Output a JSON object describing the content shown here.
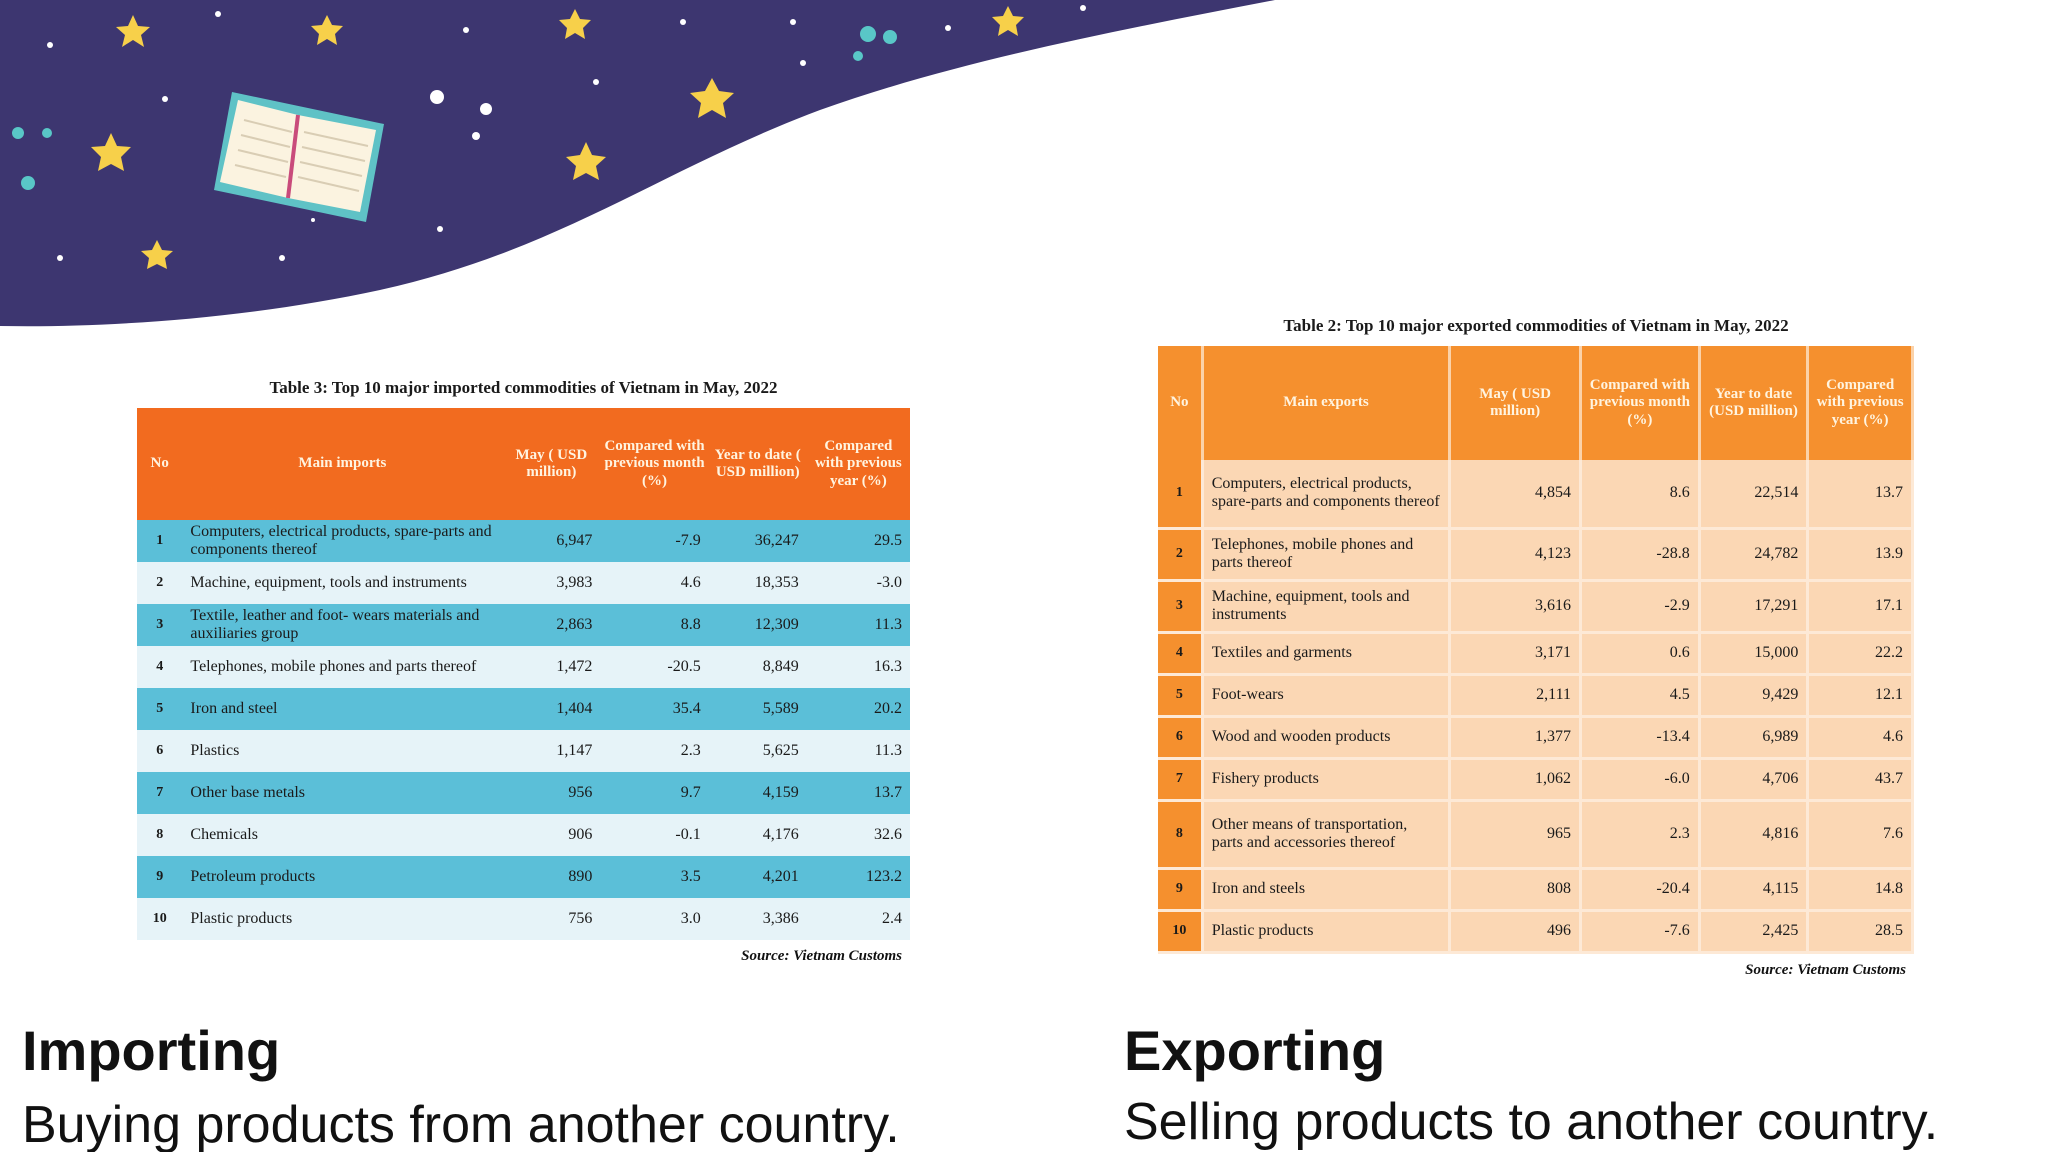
{
  "imports_table": {
    "title": "Table 3: Top 10 major imported commodities of Vietnam in May, 2022",
    "headers": [
      "No",
      "Main imports",
      "May ( USD million)",
      "Compared with previous month (%)",
      "Year to date ( USD million)",
      "Compared with previous year (%)"
    ],
    "rows": [
      {
        "no": "1",
        "name": "Computers, electrical products, spare-parts and components thereof",
        "may": "6,947",
        "mom": "-7.9",
        "ytd": "36,247",
        "yoy": "29.5"
      },
      {
        "no": "2",
        "name": "Machine, equipment, tools and instruments",
        "may": "3,983",
        "mom": "4.6",
        "ytd": "18,353",
        "yoy": "-3.0"
      },
      {
        "no": "3",
        "name": "Textile, leather and foot- wears materials and auxiliaries group",
        "may": "2,863",
        "mom": "8.8",
        "ytd": "12,309",
        "yoy": "11.3"
      },
      {
        "no": "4",
        "name": "Telephones, mobile phones and parts thereof",
        "may": "1,472",
        "mom": "-20.5",
        "ytd": "8,849",
        "yoy": "16.3"
      },
      {
        "no": "5",
        "name": "Iron and steel",
        "may": "1,404",
        "mom": "35.4",
        "ytd": "5,589",
        "yoy": "20.2"
      },
      {
        "no": "6",
        "name": "Plastics",
        "may": "1,147",
        "mom": "2.3",
        "ytd": "5,625",
        "yoy": "11.3"
      },
      {
        "no": "7",
        "name": "Other base metals",
        "may": "956",
        "mom": "9.7",
        "ytd": "4,159",
        "yoy": "13.7"
      },
      {
        "no": "8",
        "name": "Chemicals",
        "may": "906",
        "mom": "-0.1",
        "ytd": "4,176",
        "yoy": "32.6"
      },
      {
        "no": "9",
        "name": "Petroleum products",
        "may": "890",
        "mom": "3.5",
        "ytd": "4,201",
        "yoy": "123.2"
      },
      {
        "no": "10",
        "name": "Plastic products",
        "may": "756",
        "mom": "3.0",
        "ytd": "3,386",
        "yoy": "2.4"
      }
    ],
    "source": "Source: Vietnam Customs"
  },
  "exports_table": {
    "title": "Table 2: Top 10 major exported commodities of Vietnam in May, 2022",
    "headers": [
      "No",
      "Main exports",
      "May ( USD million)",
      "Compared with previous month (%)",
      "Year to date (USD million)",
      "Compared with previous year (%)"
    ],
    "rows": [
      {
        "no": "1",
        "name": "Computers, electrical products, spare-parts and components thereof",
        "may": "4,854",
        "mom": "8.6",
        "ytd": "22,514",
        "yoy": "13.7"
      },
      {
        "no": "2",
        "name": "Telephones, mobile phones and parts thereof",
        "may": "4,123",
        "mom": "-28.8",
        "ytd": "24,782",
        "yoy": "13.9"
      },
      {
        "no": "3",
        "name": "Machine, equipment, tools and instruments",
        "may": "3,616",
        "mom": "-2.9",
        "ytd": "17,291",
        "yoy": "17.1"
      },
      {
        "no": "4",
        "name": "Textiles and garments",
        "may": "3,171",
        "mom": "0.6",
        "ytd": "15,000",
        "yoy": "22.2"
      },
      {
        "no": "5",
        "name": "Foot-wears",
        "may": "2,111",
        "mom": "4.5",
        "ytd": "9,429",
        "yoy": "12.1"
      },
      {
        "no": "6",
        "name": "Wood and wooden products",
        "may": "1,377",
        "mom": "-13.4",
        "ytd": "6,989",
        "yoy": "4.6"
      },
      {
        "no": "7",
        "name": "Fishery products",
        "may": "1,062",
        "mom": "-6.0",
        "ytd": "4,706",
        "yoy": "43.7"
      },
      {
        "no": "8",
        "name": "Other means of transportation, parts and accessories thereof",
        "may": "965",
        "mom": "2.3",
        "ytd": "4,816",
        "yoy": "7.6"
      },
      {
        "no": "9",
        "name": "Iron and steels",
        "may": "808",
        "mom": "-20.4",
        "ytd": "4,115",
        "yoy": "14.8"
      },
      {
        "no": "10",
        "name": "Plastic products",
        "may": "496",
        "mom": "-7.6",
        "ytd": "2,425",
        "yoy": "28.5"
      }
    ],
    "source": "Source: Vietnam Customs"
  },
  "captions": {
    "importing_title": "Importing",
    "importing_text": "Buying products from another country.",
    "exporting_title": "Exporting",
    "exporting_text": "Selling products to another country."
  },
  "colors": {
    "banner": "#3d3670",
    "star": "#f7d04a",
    "book_cover": "#5fc2c6",
    "import_header": "#f26b1f",
    "import_alt_row": "#5bbfd8",
    "export_header": "#f5902e",
    "export_row": "#fbd7b4"
  },
  "icons": [
    "book-icon",
    "star-icon"
  ]
}
